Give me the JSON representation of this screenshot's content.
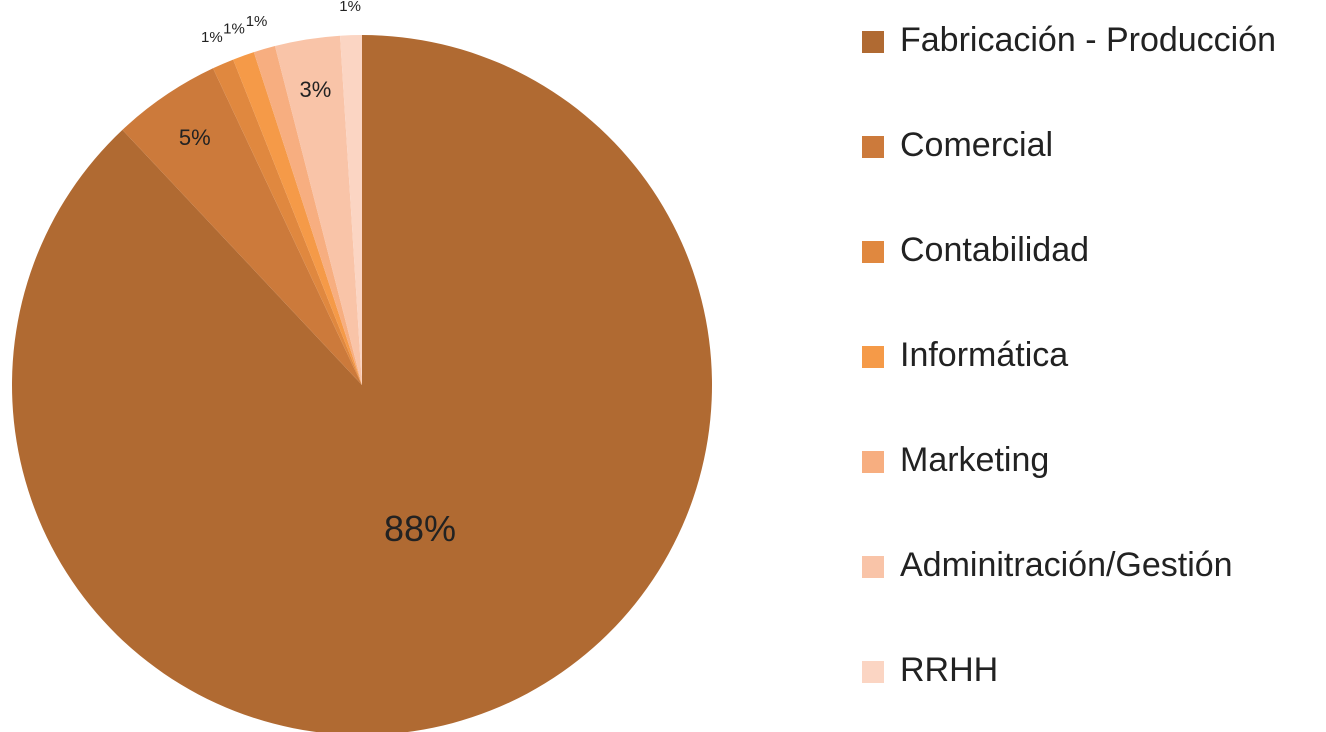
{
  "chart_data": {
    "type": "pie",
    "categories": [
      "Fabricación - Producción",
      "Comercial",
      "Contabilidad",
      "Informática",
      "Marketing",
      "Adminitración/Gestión",
      "RRHH"
    ],
    "values": [
      88,
      5,
      1,
      1,
      1,
      3,
      1
    ],
    "value_labels": [
      "88%",
      "5%",
      "1%",
      "1%",
      "1%",
      "3%",
      "1%"
    ],
    "colors": [
      "#b06a32",
      "#cc7a3b",
      "#e0883f",
      "#f59a48",
      "#f7ae80",
      "#f9c4a8",
      "#fbd5c3"
    ],
    "legend": "right"
  }
}
